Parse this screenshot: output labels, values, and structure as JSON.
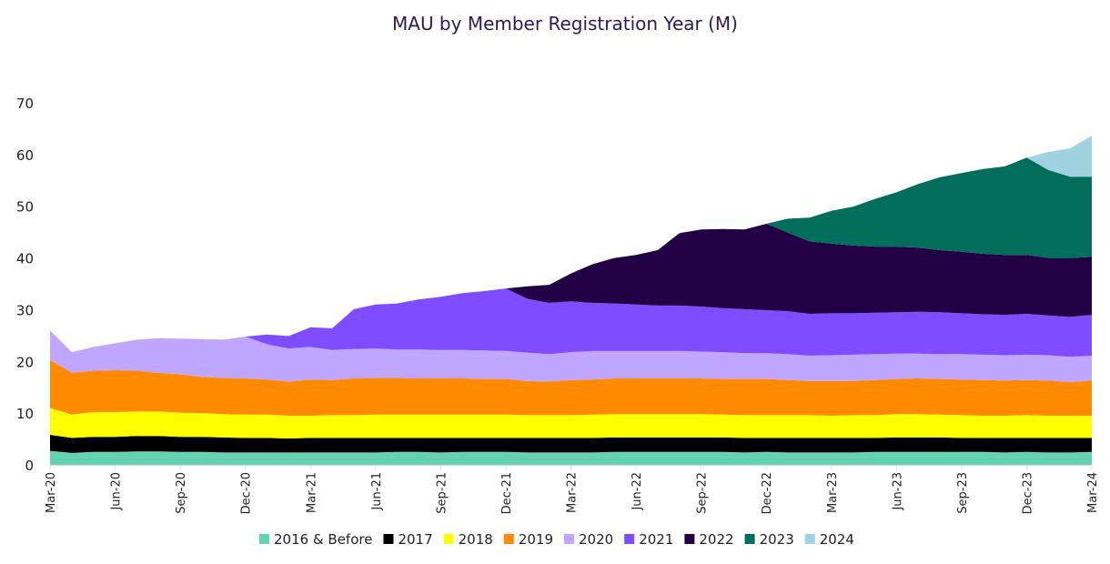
{
  "chart_data": {
    "type": "area",
    "stacked": true,
    "title": "MAU by Member Registration Year (M)",
    "xlabel": "",
    "ylabel": "",
    "ylim": [
      0,
      70
    ],
    "yticks": [
      0,
      10,
      20,
      30,
      40,
      50,
      60,
      70
    ],
    "grid": false,
    "legend_position": "bottom",
    "title_color": "#2b1a5a",
    "x": [
      "Mar-20",
      "Apr-20",
      "May-20",
      "Jun-20",
      "Jul-20",
      "Aug-20",
      "Sep-20",
      "Oct-20",
      "Nov-20",
      "Dec-20",
      "Jan-21",
      "Feb-21",
      "Mar-21",
      "Apr-21",
      "May-21",
      "Jun-21",
      "Jul-21",
      "Aug-21",
      "Sep-21",
      "Oct-21",
      "Nov-21",
      "Dec-21",
      "Jan-22",
      "Feb-22",
      "Mar-22",
      "Apr-22",
      "May-22",
      "Jun-22",
      "Jul-22",
      "Aug-22",
      "Sep-22",
      "Oct-22",
      "Nov-22",
      "Dec-22",
      "Jan-23",
      "Feb-23",
      "Mar-23",
      "Apr-23",
      "May-23",
      "Jun-23",
      "Jul-23",
      "Aug-23",
      "Sep-23",
      "Oct-23",
      "Nov-23",
      "Dec-23",
      "Jan-24",
      "Feb-24",
      "Mar-24"
    ],
    "xtick_labels": [
      "Mar-20",
      "Jun-20",
      "Sep-20",
      "Dec-20",
      "Mar-21",
      "Jun-21",
      "Sep-21",
      "Dec-21",
      "Mar-22",
      "Jun-22",
      "Sep-22",
      "Dec-22",
      "Mar-23",
      "Jun-23",
      "Sep-23",
      "Dec-23",
      "Mar-24"
    ],
    "series": [
      {
        "name": "2016 & Before",
        "color": "#66d3b0",
        "values": [
          2.7,
          2.3,
          2.5,
          2.5,
          2.6,
          2.6,
          2.5,
          2.5,
          2.4,
          2.4,
          2.4,
          2.4,
          2.4,
          2.4,
          2.4,
          2.4,
          2.5,
          2.5,
          2.4,
          2.5,
          2.5,
          2.5,
          2.4,
          2.4,
          2.4,
          2.4,
          2.5,
          2.5,
          2.5,
          2.5,
          2.5,
          2.5,
          2.4,
          2.5,
          2.4,
          2.4,
          2.4,
          2.4,
          2.5,
          2.5,
          2.5,
          2.5,
          2.5,
          2.5,
          2.4,
          2.5,
          2.4,
          2.4,
          2.5
        ]
      },
      {
        "name": "2017",
        "color": "#000000",
        "values": [
          3.1,
          2.9,
          2.9,
          2.9,
          3.0,
          3.0,
          2.9,
          2.9,
          2.9,
          2.8,
          2.8,
          2.7,
          2.8,
          2.8,
          2.8,
          2.8,
          2.7,
          2.7,
          2.8,
          2.7,
          2.7,
          2.7,
          2.8,
          2.8,
          2.8,
          2.8,
          2.8,
          2.8,
          2.8,
          2.8,
          2.8,
          2.8,
          2.8,
          2.7,
          2.8,
          2.8,
          2.8,
          2.8,
          2.7,
          2.8,
          2.8,
          2.8,
          2.7,
          2.7,
          2.8,
          2.7,
          2.8,
          2.8,
          2.7
        ]
      },
      {
        "name": "2018",
        "color": "#ffff00",
        "values": [
          5.2,
          4.5,
          4.8,
          4.8,
          4.7,
          4.7,
          4.7,
          4.6,
          4.5,
          4.5,
          4.5,
          4.4,
          4.3,
          4.4,
          4.4,
          4.5,
          4.5,
          4.5,
          4.5,
          4.5,
          4.5,
          4.5,
          4.4,
          4.4,
          4.4,
          4.5,
          4.5,
          4.5,
          4.5,
          4.5,
          4.5,
          4.4,
          4.4,
          4.4,
          4.4,
          4.4,
          4.3,
          4.4,
          4.4,
          4.5,
          4.5,
          4.4,
          4.4,
          4.3,
          4.3,
          4.4,
          4.3,
          4.3,
          4.3
        ]
      },
      {
        "name": "2019",
        "color": "#ff8a00",
        "values": [
          9.3,
          8.1,
          8.0,
          8.1,
          7.9,
          7.5,
          7.4,
          7.0,
          7.0,
          7.0,
          6.8,
          6.6,
          7.0,
          6.8,
          7.1,
          7.1,
          7.1,
          7.0,
          7.0,
          7.0,
          6.9,
          6.9,
          6.6,
          6.5,
          6.8,
          6.8,
          6.9,
          6.9,
          6.9,
          6.9,
          6.9,
          6.9,
          7.0,
          7.0,
          6.8,
          6.6,
          6.7,
          6.6,
          6.8,
          6.8,
          6.9,
          6.9,
          6.9,
          6.9,
          6.8,
          6.8,
          6.8,
          6.5,
          6.8
        ]
      },
      {
        "name": "2020",
        "color": "#c1a6ff",
        "values": [
          5.7,
          4.0,
          4.6,
          5.2,
          6.0,
          6.7,
          6.9,
          7.3,
          7.4,
          8.1,
          6.8,
          6.4,
          6.3,
          5.8,
          5.7,
          5.7,
          5.5,
          5.6,
          5.5,
          5.5,
          5.5,
          5.4,
          5.5,
          5.3,
          5.4,
          5.5,
          5.3,
          5.3,
          5.3,
          5.3,
          5.2,
          5.2,
          5.0,
          5.0,
          5.0,
          4.9,
          5.0,
          5.1,
          5.0,
          4.9,
          4.8,
          4.8,
          4.9,
          4.9,
          4.9,
          4.9,
          4.9,
          4.9,
          4.8
        ]
      },
      {
        "name": "2021",
        "color": "#7f4dff",
        "values": [
          0,
          0,
          0,
          0,
          0,
          0,
          0,
          0,
          0,
          0,
          1.9,
          2.4,
          3.8,
          4.2,
          7.7,
          8.5,
          8.9,
          9.7,
          10.3,
          11.0,
          11.5,
          12.1,
          10.4,
          9.9,
          9.8,
          9.3,
          9.2,
          9.0,
          8.8,
          8.8,
          8.7,
          8.5,
          8.5,
          8.3,
          8.3,
          8.1,
          8.1,
          8.0,
          8.0,
          8.0,
          8.1,
          8.1,
          7.9,
          7.8,
          7.8,
          7.9,
          7.7,
          7.7,
          7.9
        ]
      },
      {
        "name": "2022",
        "color": "#230046",
        "values": [
          0,
          0,
          0,
          0,
          0,
          0,
          0,
          0,
          0,
          0,
          0,
          0,
          0,
          0,
          0,
          0,
          0,
          0,
          0,
          0,
          0,
          0,
          2.4,
          3.5,
          5.4,
          7.5,
          8.8,
          9.6,
          10.7,
          14.0,
          14.9,
          15.3,
          15.4,
          16.7,
          15.2,
          14.0,
          13.5,
          13.1,
          12.8,
          12.7,
          12.4,
          12.0,
          11.9,
          11.7,
          11.6,
          11.4,
          11.1,
          11.4,
          11.2
        ]
      },
      {
        "name": "2023",
        "color": "#006e5a",
        "values": [
          0,
          0,
          0,
          0,
          0,
          0,
          0,
          0,
          0,
          0,
          0,
          0,
          0,
          0,
          0,
          0,
          0,
          0,
          0,
          0,
          0,
          0,
          0,
          0,
          0,
          0,
          0,
          0,
          0,
          0,
          0,
          0,
          0,
          0,
          2.7,
          4.6,
          6.3,
          7.5,
          9.2,
          10.5,
          12.3,
          14.1,
          15.2,
          16.4,
          17.1,
          18.8,
          17.0,
          15.7,
          15.5
        ]
      },
      {
        "name": "2024",
        "color": "#9fd3e0",
        "values": [
          0,
          0,
          0,
          0,
          0,
          0,
          0,
          0,
          0,
          0,
          0,
          0,
          0,
          0,
          0,
          0,
          0,
          0,
          0,
          0,
          0,
          0,
          0,
          0,
          0,
          0,
          0,
          0,
          0,
          0,
          0,
          0,
          0,
          0,
          0,
          0,
          0,
          0,
          0,
          0,
          0,
          0,
          0,
          0,
          0,
          0,
          3.5,
          5.5,
          7.9
        ]
      }
    ]
  }
}
